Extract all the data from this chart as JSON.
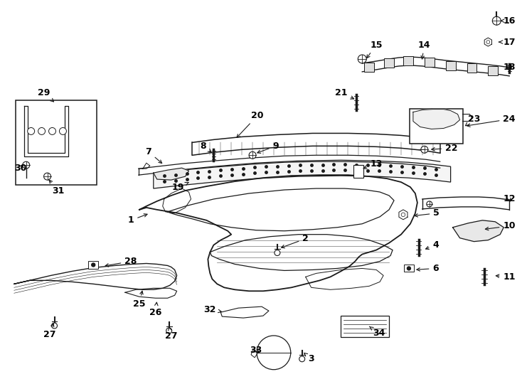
{
  "bg_color": "#ffffff",
  "line_color": "#1a1a1a",
  "text_color": "#000000",
  "fig_width": 7.34,
  "fig_height": 5.4,
  "dpi": 100
}
